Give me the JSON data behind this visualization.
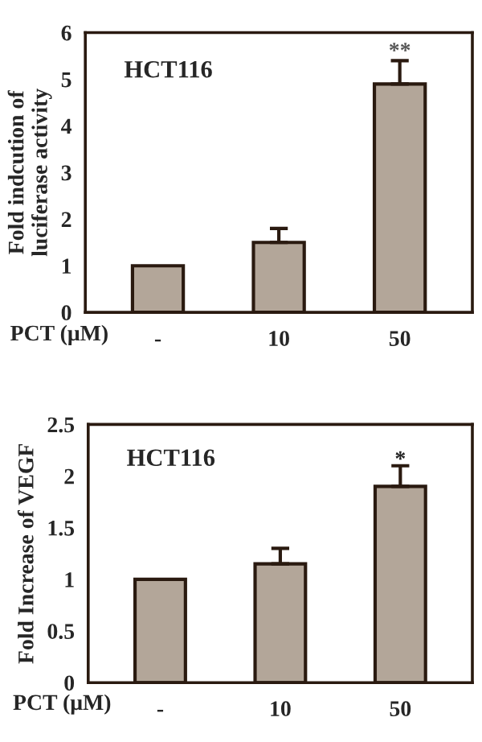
{
  "chart_data": [
    {
      "type": "bar",
      "categories": [
        "-",
        "10",
        "50"
      ],
      "values": [
        1,
        1.5,
        4.9
      ],
      "errors": [
        null,
        0.3,
        0.5
      ],
      "color": "#b3a699",
      "xlabel": "PCT (μM)",
      "ylabel": "Fold indcution of\nluciferase activity",
      "ylim": [
        0,
        6
      ],
      "yticks": [
        0,
        1,
        2,
        3,
        4,
        5,
        6
      ],
      "grid": false,
      "legend": false,
      "annotations": [
        "HCT116",
        "**"
      ]
    },
    {
      "type": "bar",
      "categories": [
        "-",
        "10",
        "50"
      ],
      "values": [
        1,
        1.15,
        1.9
      ],
      "errors": [
        null,
        0.15,
        0.2
      ],
      "color": "#b3a699",
      "xlabel": "PCT (μM)",
      "ylabel": "Fold Increase of VEGF",
      "ylim": [
        0,
        2.5
      ],
      "yticks": [
        0,
        0.5,
        1,
        1.5,
        2,
        2.5
      ],
      "grid": false,
      "legend": false,
      "annotations": [
        "HCT116",
        "*"
      ]
    }
  ]
}
